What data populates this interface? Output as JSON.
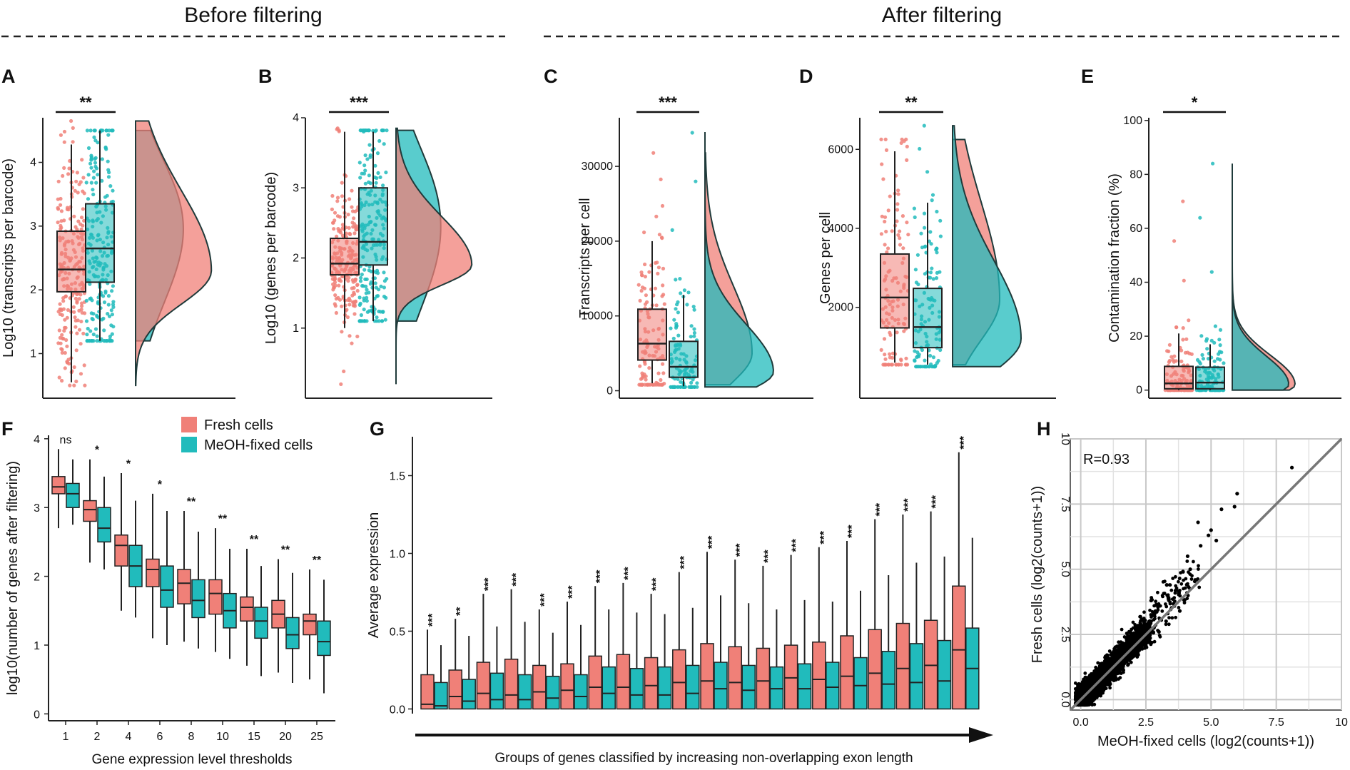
{
  "headers": {
    "before": "Before filtering",
    "after": "After filtering"
  },
  "colors": {
    "fresh": "#F08078",
    "fixed": "#21BBBC",
    "freshDark": "#E9655C",
    "fixedDark": "#18A9AB",
    "box": "#222222",
    "grid": "#c8c8c8",
    "diag": "#777777"
  },
  "legend": {
    "fresh": "Fresh cells",
    "fixed": "MeOH-fixed cells"
  },
  "chart_data": [
    {
      "panel": "A",
      "type": "raincloud-box",
      "ylabel": "Log10 (transcripts per barcode)",
      "ylim": [
        0.3,
        4.7
      ],
      "yticks": [
        1,
        2,
        3,
        4
      ],
      "significance": "**",
      "groups": [
        {
          "name": "Fresh cells",
          "median": 2.32,
          "q1": 1.97,
          "q3": 2.92,
          "wlo": 0.55,
          "whi": 4.28,
          "ptMin": 0.5,
          "ptMax": 4.65,
          "ptMode": 2.3
        },
        {
          "name": "MeOH-fixed cells",
          "median": 2.65,
          "q1": 2.12,
          "q3": 3.35,
          "wlo": 1.2,
          "whi": 4.5,
          "ptMin": 1.2,
          "ptMax": 4.5,
          "ptMode": 2.6
        }
      ]
    },
    {
      "panel": "B",
      "type": "raincloud-box",
      "ylabel": "Log10 (genes per barcode)",
      "ylim": [
        0.0,
        4.0
      ],
      "yticks": [
        1,
        2,
        3,
        4
      ],
      "significance": "***",
      "groups": [
        {
          "name": "Fresh cells",
          "median": 1.92,
          "q1": 1.76,
          "q3": 2.28,
          "wlo": 1.0,
          "whi": 3.8,
          "ptMin": 0.2,
          "ptMax": 3.85,
          "ptMode": 1.9
        },
        {
          "name": "MeOH-fixed cells",
          "median": 2.23,
          "q1": 1.9,
          "q3": 3.0,
          "wlo": 1.1,
          "whi": 3.8,
          "ptMin": 1.1,
          "ptMax": 3.82,
          "ptMode": 2.1
        }
      ]
    },
    {
      "panel": "C",
      "type": "raincloud-box",
      "ylabel": "Transcripts per cell",
      "ylim": [
        -1000,
        36500
      ],
      "yticks": [
        0,
        10000,
        20000,
        30000
      ],
      "significance": "***",
      "groups": [
        {
          "name": "Fresh cells",
          "median": 6300,
          "q1": 4100,
          "q3": 10900,
          "wlo": 1000,
          "whi": 20000,
          "ptMin": 800,
          "ptMax": 31800,
          "ptMode": 5000
        },
        {
          "name": "MeOH-fixed cells",
          "median": 3200,
          "q1": 1800,
          "q3": 6600,
          "wlo": 600,
          "whi": 12800,
          "ptMin": 500,
          "ptMax": 34500,
          "ptMode": 2500
        }
      ]
    },
    {
      "panel": "D",
      "type": "raincloud-box",
      "ylabel": "Genes per cell",
      "ylim": [
        -300,
        6800
      ],
      "yticks": [
        2000,
        4000,
        6000
      ],
      "significance": "**",
      "groups": [
        {
          "name": "Fresh cells",
          "median": 2250,
          "q1": 1480,
          "q3": 3350,
          "wlo": 600,
          "whi": 5950,
          "ptMin": 550,
          "ptMax": 6250,
          "ptMode": 2200
        },
        {
          "name": "MeOH-fixed cells",
          "median": 1500,
          "q1": 980,
          "q3": 2480,
          "wlo": 550,
          "whi": 4650,
          "ptMin": 500,
          "ptMax": 6600,
          "ptMode": 1200
        }
      ]
    },
    {
      "panel": "E",
      "type": "raincloud-box",
      "ylabel": "Contamination fraction (%)",
      "ylim": [
        -3,
        101
      ],
      "yticks": [
        0,
        20,
        40,
        60,
        80,
        100
      ],
      "significance": "*",
      "groups": [
        {
          "name": "Fresh cells",
          "median": 2.5,
          "q1": 0.5,
          "q3": 8.8,
          "wlo": 0,
          "whi": 21,
          "ptMin": 0,
          "ptMax": 70,
          "ptMode": 2
        },
        {
          "name": "MeOH-fixed cells",
          "median": 2.8,
          "q1": 0.5,
          "q3": 8.5,
          "wlo": 0,
          "whi": 17,
          "ptMin": 0,
          "ptMax": 84,
          "ptMode": 2
        }
      ]
    },
    {
      "panel": "F",
      "type": "boxplot",
      "ylabel": "log10(number of genes after filtering)",
      "xlabel": "Gene expression level thresholds",
      "ylim": [
        -0.1,
        4.05
      ],
      "yticks": [
        0,
        1,
        2,
        3,
        4
      ],
      "categories": [
        "1",
        "2",
        "4",
        "6",
        "8",
        "10",
        "15",
        "20",
        "25"
      ],
      "significance": [
        "ns",
        "*",
        "*",
        "*",
        "**",
        "**",
        "**",
        "**",
        "**"
      ],
      "series": [
        {
          "name": "Fresh cells",
          "boxes": [
            {
              "wlo": 2.7,
              "q1": 3.2,
              "med": 3.3,
              "q3": 3.45,
              "whi": 3.85
            },
            {
              "wlo": 2.2,
              "q1": 2.8,
              "med": 2.97,
              "q3": 3.1,
              "whi": 3.7
            },
            {
              "wlo": 1.5,
              "q1": 2.15,
              "med": 2.45,
              "q3": 2.6,
              "whi": 3.5
            },
            {
              "wlo": 1.1,
              "q1": 1.85,
              "med": 2.1,
              "q3": 2.25,
              "whi": 3.2
            },
            {
              "wlo": 1.05,
              "q1": 1.6,
              "med": 1.9,
              "q3": 2.1,
              "whi": 2.95
            },
            {
              "wlo": 0.9,
              "q1": 1.45,
              "med": 1.75,
              "q3": 1.95,
              "whi": 2.7
            },
            {
              "wlo": 0.7,
              "q1": 1.35,
              "med": 1.55,
              "q3": 1.7,
              "whi": 2.4
            },
            {
              "wlo": 0.6,
              "q1": 1.25,
              "med": 1.45,
              "q3": 1.65,
              "whi": 2.25
            },
            {
              "wlo": 0.5,
              "q1": 1.15,
              "med": 1.35,
              "q3": 1.45,
              "whi": 2.1
            }
          ]
        },
        {
          "name": "MeOH-fixed cells",
          "boxes": [
            {
              "wlo": 2.75,
              "q1": 3.0,
              "med": 3.2,
              "q3": 3.35,
              "whi": 3.7
            },
            {
              "wlo": 2.1,
              "q1": 2.5,
              "med": 2.7,
              "q3": 3.0,
              "whi": 3.45
            },
            {
              "wlo": 1.4,
              "q1": 1.85,
              "med": 2.15,
              "q3": 2.45,
              "whi": 3.1
            },
            {
              "wlo": 1.0,
              "q1": 1.55,
              "med": 1.8,
              "q3": 2.15,
              "whi": 2.95
            },
            {
              "wlo": 0.95,
              "q1": 1.4,
              "med": 1.65,
              "q3": 1.95,
              "whi": 2.65
            },
            {
              "wlo": 0.8,
              "q1": 1.25,
              "med": 1.5,
              "q3": 1.75,
              "whi": 2.4
            },
            {
              "wlo": 0.55,
              "q1": 1.1,
              "med": 1.35,
              "q3": 1.55,
              "whi": 2.15
            },
            {
              "wlo": 0.45,
              "q1": 0.95,
              "med": 1.15,
              "q3": 1.4,
              "whi": 2.05
            },
            {
              "wlo": 0.3,
              "q1": 0.85,
              "med": 1.05,
              "q3": 1.35,
              "whi": 1.95
            }
          ]
        }
      ]
    },
    {
      "panel": "G",
      "type": "boxplot",
      "ylabel": "Average expression",
      "xlabel": "Groups of genes classified by increasing non-overlapping exon length",
      "ylim": [
        -0.03,
        1.75
      ],
      "yticks": [
        0.0,
        0.5,
        1.0,
        1.5
      ],
      "significance": [
        "***",
        "**",
        "***",
        "***",
        "***",
        "***",
        "***",
        "***",
        "***",
        "***",
        "***",
        "***",
        "***",
        "***",
        "***",
        "***",
        "***",
        "***",
        "***",
        "***"
      ],
      "series": [
        {
          "name": "Fresh cells",
          "q3": [
            0.22,
            0.25,
            0.3,
            0.32,
            0.28,
            0.29,
            0.34,
            0.35,
            0.33,
            0.38,
            0.42,
            0.4,
            0.39,
            0.41,
            0.43,
            0.47,
            0.51,
            0.55,
            0.57,
            0.79
          ],
          "med": [
            0.03,
            0.08,
            0.1,
            0.09,
            0.11,
            0.12,
            0.14,
            0.14,
            0.15,
            0.17,
            0.18,
            0.17,
            0.18,
            0.2,
            0.19,
            0.21,
            0.23,
            0.26,
            0.28,
            0.38
          ],
          "whi": [
            0.51,
            0.58,
            0.74,
            0.77,
            0.64,
            0.69,
            0.79,
            0.81,
            0.74,
            0.88,
            1.01,
            0.96,
            0.92,
            0.99,
            1.04,
            1.08,
            1.22,
            1.25,
            1.27,
            1.65
          ]
        },
        {
          "name": "MeOH-fixed cells",
          "q3": [
            0.17,
            0.19,
            0.23,
            0.22,
            0.21,
            0.22,
            0.27,
            0.26,
            0.27,
            0.28,
            0.3,
            0.28,
            0.27,
            0.29,
            0.3,
            0.33,
            0.37,
            0.42,
            0.44,
            0.52
          ],
          "med": [
            0.02,
            0.05,
            0.06,
            0.06,
            0.07,
            0.08,
            0.1,
            0.09,
            0.09,
            0.1,
            0.13,
            0.12,
            0.13,
            0.13,
            0.14,
            0.15,
            0.16,
            0.17,
            0.18,
            0.26
          ],
          "whi": [
            0.41,
            0.47,
            0.53,
            0.56,
            0.49,
            0.54,
            0.64,
            0.62,
            0.61,
            0.65,
            0.73,
            0.68,
            0.64,
            0.7,
            0.69,
            0.76,
            0.86,
            0.94,
            0.98,
            1.1
          ]
        }
      ]
    },
    {
      "panel": "H",
      "type": "scatter",
      "annotation": "R=0.93",
      "xlabel": "MeOH-fixed cells (log2(counts+1))",
      "ylabel": "Fresh cells (log2(counts+1))",
      "xlim": [
        -0.4,
        10
      ],
      "ylim": [
        -0.4,
        10
      ],
      "xticks": [
        "0.0",
        "2.5",
        "5.0",
        "7.5",
        "10"
      ],
      "yticks": [
        "0.0",
        "2.5",
        "5.0",
        "7.5",
        "10"
      ],
      "outliers": [
        [
          8.1,
          8.9
        ],
        [
          6.0,
          7.9
        ],
        [
          5.9,
          7.4
        ],
        [
          5.4,
          7.3
        ],
        [
          4.5,
          6.8
        ],
        [
          5.0,
          6.5
        ],
        [
          4.6,
          5.9
        ],
        [
          4.1,
          5.5
        ],
        [
          3.3,
          4.4
        ],
        [
          3.8,
          3.4
        ],
        [
          3.0,
          2.6
        ],
        [
          2.7,
          3.8
        ],
        [
          5.2,
          6.1
        ],
        [
          4.9,
          6.3
        ],
        [
          4.2,
          5.0
        ]
      ]
    }
  ]
}
